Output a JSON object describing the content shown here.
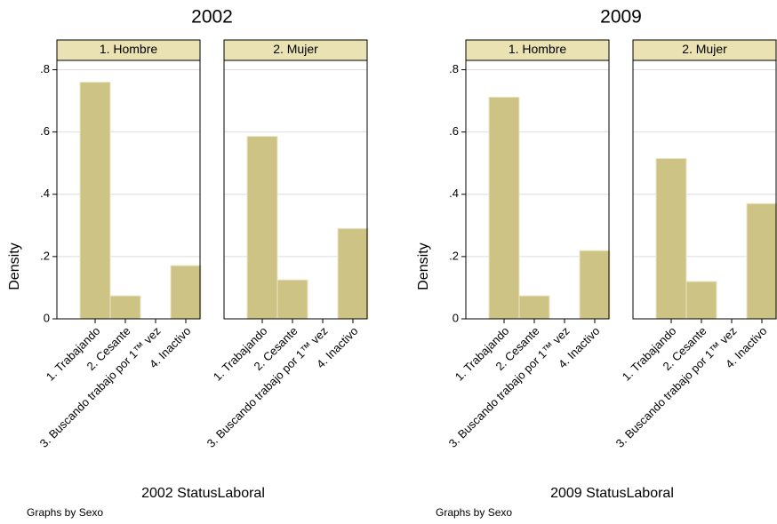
{
  "chart_data": [
    {
      "type": "bar",
      "title": "2002",
      "ylabel": "Density",
      "xlabel": "2002 StatusLaboral",
      "note": "Graphs by Sexo",
      "categories": [
        "1. Trabajando",
        "2. Cesante",
        "3. Buscando trabajo por 1™ vez",
        "4. Inactivo"
      ],
      "color": "#cdc385",
      "ylim": [
        0,
        0.83
      ],
      "yticks": [
        0,
        {
          "value": 0.2,
          "label": ".2"
        },
        {
          "value": 0.4,
          "label": ".4"
        },
        {
          "value": 0.6,
          "label": ".6"
        },
        {
          "value": 0.8,
          "label": ".8"
        }
      ],
      "grid": true,
      "panels": [
        {
          "name": "1. Hombre",
          "values": [
            0.76,
            0.074,
            0,
            0.171
          ]
        },
        {
          "name": "2. Mujer",
          "values": [
            0.586,
            0.125,
            0,
            0.29
          ]
        }
      ]
    },
    {
      "type": "bar",
      "title": "2009",
      "ylabel": "Density",
      "xlabel": "2009 StatusLaboral",
      "note": "Graphs by Sexo",
      "categories": [
        "1. Trabajando",
        "2. Cesante",
        "3. Buscando trabajo por 1™ vez",
        "4. Inactivo"
      ],
      "color": "#cdc385",
      "ylim": [
        0,
        0.83
      ],
      "yticks": [
        0,
        {
          "value": 0.2,
          "label": ".2"
        },
        {
          "value": 0.4,
          "label": ".4"
        },
        {
          "value": 0.6,
          "label": ".6"
        },
        {
          "value": 0.8,
          "label": ".8"
        }
      ],
      "grid": true,
      "panels": [
        {
          "name": "1. Hombre",
          "values": [
            0.712,
            0.074,
            0,
            0.219
          ]
        },
        {
          "name": "2. Mujer",
          "values": [
            0.515,
            0.12,
            0,
            0.37
          ]
        }
      ]
    }
  ]
}
